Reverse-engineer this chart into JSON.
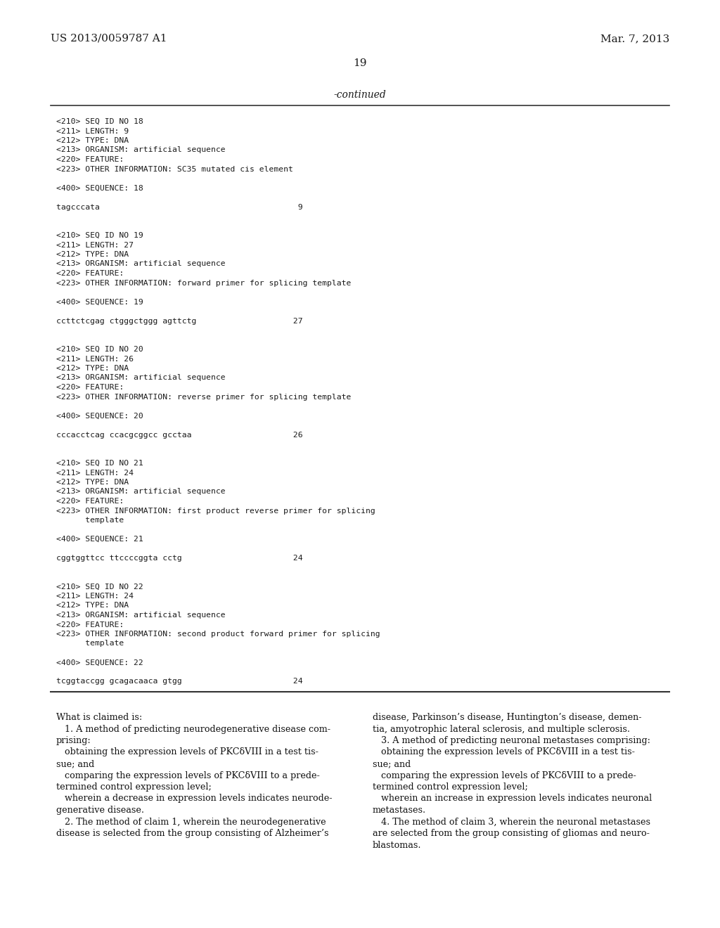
{
  "bg_color": "#ffffff",
  "header_left": "US 2013/0059787 A1",
  "header_right": "Mar. 7, 2013",
  "page_number": "19",
  "continued_label": "-continued",
  "monospace_lines": [
    "<210> SEQ ID NO 18",
    "<211> LENGTH: 9",
    "<212> TYPE: DNA",
    "<213> ORGANISM: artificial sequence",
    "<220> FEATURE:",
    "<223> OTHER INFORMATION: SC35 mutated cis element",
    "",
    "<400> SEQUENCE: 18",
    "",
    "tagcccata                                         9",
    "",
    "",
    "<210> SEQ ID NO 19",
    "<211> LENGTH: 27",
    "<212> TYPE: DNA",
    "<213> ORGANISM: artificial sequence",
    "<220> FEATURE:",
    "<223> OTHER INFORMATION: forward primer for splicing template",
    "",
    "<400> SEQUENCE: 19",
    "",
    "ccttctcgag ctgggctggg agttctg                    27",
    "",
    "",
    "<210> SEQ ID NO 20",
    "<211> LENGTH: 26",
    "<212> TYPE: DNA",
    "<213> ORGANISM: artificial sequence",
    "<220> FEATURE:",
    "<223> OTHER INFORMATION: reverse primer for splicing template",
    "",
    "<400> SEQUENCE: 20",
    "",
    "cccacctcag ccacgcggcc gcctaa                     26",
    "",
    "",
    "<210> SEQ ID NO 21",
    "<211> LENGTH: 24",
    "<212> TYPE: DNA",
    "<213> ORGANISM: artificial sequence",
    "<220> FEATURE:",
    "<223> OTHER INFORMATION: first product reverse primer for splicing",
    "      template",
    "",
    "<400> SEQUENCE: 21",
    "",
    "cggtggttcc ttccccggta cctg                       24",
    "",
    "",
    "<210> SEQ ID NO 22",
    "<211> LENGTH: 24",
    "<212> TYPE: DNA",
    "<213> ORGANISM: artificial sequence",
    "<220> FEATURE:",
    "<223> OTHER INFORMATION: second product forward primer for splicing",
    "      template",
    "",
    "<400> SEQUENCE: 22",
    "",
    "tcggtaccgg gcagacaaca gtgg                       24"
  ],
  "claims_col1": [
    "What is claimed is:",
    "   ±1. A method of predicting neurodegenerative disease com-",
    "prising:",
    "   obtaining the expression levels of PKCδVIII in a test tis-",
    "sue; and",
    "   comparing the expression levels of PKCδVIII to a prede-",
    "termined control expression level;",
    "   wherein a decrease in expression levels indicates neurode-",
    "generative disease.",
    "   ±2. The method of claim ±1, wherein the neurodegenerative",
    "disease is selected from the group consisting of Alzheimer’s"
  ],
  "claims_col1_bold": [
    false,
    true,
    false,
    false,
    false,
    false,
    false,
    false,
    false,
    true,
    false
  ],
  "claims_col2": [
    "disease, Parkinson’s disease, Huntington’s disease, demen-",
    "tia, amyotrophic lateral sclerosis, and multiple sclerosis.",
    "   ±3. A method of predicting neuronal metastases comprising:",
    "   obtaining the expression levels of PKCδVIII in a test tis-",
    "sue; and",
    "   comparing the expression levels of PKCδVIII to a prede-",
    "termined control expression level;",
    "   wherein an increase in expression levels indicates neuronal",
    "metastases.",
    "   ±4. The method of claim ±3, wherein the neuronal metastases",
    "are selected from the group consisting of gliomas and neuro-",
    "blastomas."
  ],
  "claims_col2_bold": [
    false,
    false,
    true,
    false,
    false,
    false,
    false,
    false,
    false,
    true,
    false,
    false
  ]
}
